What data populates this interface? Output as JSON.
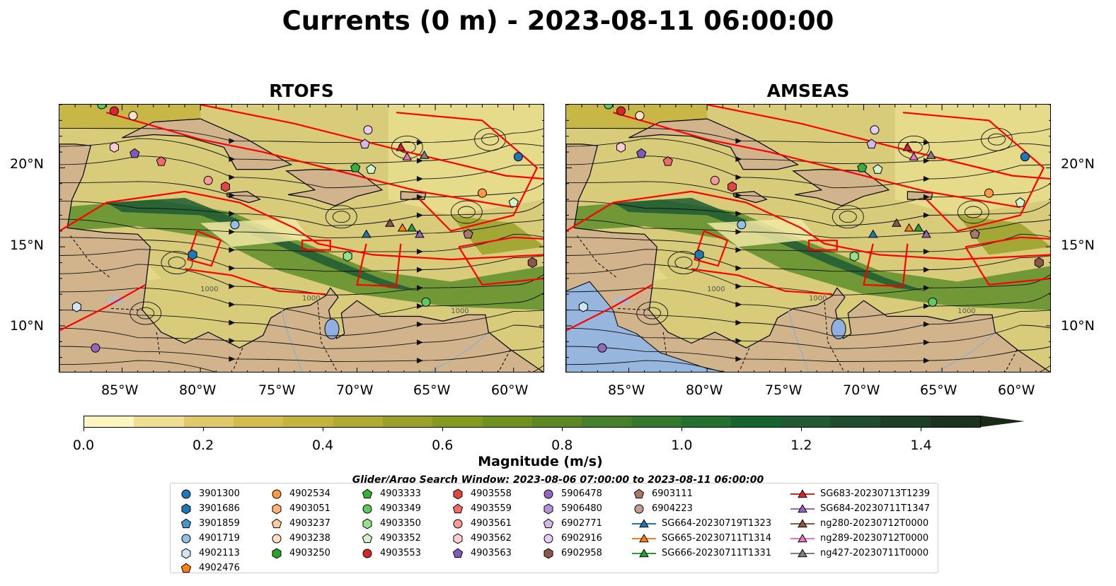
{
  "title": "Currents (0 m) - 2023-08-11 06:00:00",
  "panels": [
    {
      "title": "RTOFS"
    },
    {
      "title": "AMSEAS"
    }
  ],
  "lat_labels": [
    "20°N",
    "15°N",
    "10°N"
  ],
  "lon_labels": [
    "85°W",
    "80°W",
    "75°W",
    "70°W",
    "65°W",
    "60°W"
  ],
  "contour_label": "1000",
  "colorbar": {
    "label": "Magnitude (m/s)",
    "ticks": [
      "0.0",
      "0.2",
      "0.4",
      "0.6",
      "0.8",
      "1.0",
      "1.2",
      "1.4"
    ],
    "colors": [
      "#fcf5c0",
      "#efdf92",
      "#e0c96a",
      "#d3bd4f",
      "#c4b33d",
      "#b0aa32",
      "#9aa02a",
      "#849a1f",
      "#6e9120",
      "#5b8823",
      "#47802a",
      "#357a2c",
      "#226f2e",
      "#15642e",
      "#1f5a34",
      "#1e4c2c",
      "#1d3f26",
      "#1c331f"
    ]
  },
  "legend_title": "Glider/Argo Search Window: 2023-08-06 07:00:00 to 2023-08-11 06:00:00",
  "legend_items": [
    {
      "label": "3901300",
      "shape": "circle",
      "color": "#1f77b4"
    },
    {
      "label": "3901686",
      "shape": "hexagon",
      "color": "#1f77b4"
    },
    {
      "label": "3901859",
      "shape": "pentagon",
      "color": "#4a94c8"
    },
    {
      "label": "4901719",
      "shape": "circle",
      "color": "#93c0e6"
    },
    {
      "label": "4902113",
      "shape": "hexagon",
      "color": "#cfe4f5"
    },
    {
      "label": "4902476",
      "shape": "pentagon",
      "color": "#ff7f0e"
    },
    {
      "label": "4902534",
      "shape": "circle",
      "color": "#ff9a3e"
    },
    {
      "label": "4903051",
      "shape": "hexagon",
      "color": "#ffb377"
    },
    {
      "label": "4903237",
      "shape": "pentagon",
      "color": "#ffcb9a"
    },
    {
      "label": "4903238",
      "shape": "circle",
      "color": "#ffe2c4"
    },
    {
      "label": "4903250",
      "shape": "hexagon",
      "color": "#2ca02c"
    },
    {
      "label": "4903333",
      "shape": "pentagon",
      "color": "#37b037"
    },
    {
      "label": "4903349",
      "shape": "circle",
      "color": "#5fc95f"
    },
    {
      "label": "4903350",
      "shape": "hexagon",
      "color": "#98df8a"
    },
    {
      "label": "4903352",
      "shape": "pentagon",
      "color": "#d4f3c9"
    },
    {
      "label": "4903553",
      "shape": "circle",
      "color": "#d62728"
    },
    {
      "label": "4903558",
      "shape": "hexagon",
      "color": "#e0473f"
    },
    {
      "label": "4903559",
      "shape": "pentagon",
      "color": "#ee6b68"
    },
    {
      "label": "4903561",
      "shape": "circle",
      "color": "#f49c9a"
    },
    {
      "label": "4903562",
      "shape": "hexagon",
      "color": "#fccfcf"
    },
    {
      "label": "4903563",
      "shape": "pentagon",
      "color": "#7e5cbf"
    },
    {
      "label": "5906478",
      "shape": "circle",
      "color": "#9467bd"
    },
    {
      "label": "5906480",
      "shape": "hexagon",
      "color": "#b094d4"
    },
    {
      "label": "6902771",
      "shape": "pentagon",
      "color": "#d2b9ea"
    },
    {
      "label": "6902916",
      "shape": "circle",
      "color": "#e6ccf4"
    },
    {
      "label": "6902958",
      "shape": "hexagon",
      "color": "#8c564b"
    },
    {
      "label": "6903111",
      "shape": "pentagon",
      "color": "#a9786b"
    },
    {
      "label": "6904223",
      "shape": "circle",
      "color": "#c49c94"
    },
    {
      "label": "SG664-20230719T1323",
      "shape": "triangle-line",
      "color": "#1f77b4"
    },
    {
      "label": "SG665-20230711T1314",
      "shape": "triangle-line",
      "color": "#ff7f0e"
    },
    {
      "label": "SG666-20230711T1331",
      "shape": "triangle-line",
      "color": "#2ca02c"
    },
    {
      "label": "SG683-20230713T1239",
      "shape": "triangle-line",
      "color": "#d62728"
    },
    {
      "label": "SG684-20230711T1347",
      "shape": "triangle-line",
      "color": "#9467bd"
    },
    {
      "label": "ng280-20230712T0000",
      "shape": "triangle-line",
      "color": "#8c564b"
    },
    {
      "label": "ng289-20230712T0000",
      "shape": "triangle-line",
      "color": "#e377c2"
    },
    {
      "label": "ng427-20230711T0000",
      "shape": "triangle-line",
      "color": "#7f7f7f"
    }
  ],
  "map_markers": [
    {
      "id": "4903349",
      "lon": -86.3,
      "lat": 24.0
    },
    {
      "id": "4903553",
      "lon": -85.5,
      "lat": 23.6
    },
    {
      "id": "4903238",
      "lon": -84.3,
      "lat": 23.3
    },
    {
      "id": "4903562",
      "lon": -85.5,
      "lat": 21.3
    },
    {
      "id": "4903563",
      "lon": -84.2,
      "lat": 20.9
    },
    {
      "id": "4903559",
      "lon": -82.5,
      "lat": 20.4
    },
    {
      "id": "4903561",
      "lon": -79.5,
      "lat": 19.2
    },
    {
      "id": "4903558",
      "lon": -78.4,
      "lat": 18.8
    },
    {
      "id": "4901719",
      "lon": -77.8,
      "lat": 16.4
    },
    {
      "id": "3901686",
      "lon": -80.5,
      "lat": 14.5
    },
    {
      "id": "4902113",
      "lon": -87.9,
      "lat": 11.2
    },
    {
      "id": "5906478",
      "lon": -86.7,
      "lat": 8.6
    },
    {
      "id": "6902916",
      "lon": -69.3,
      "lat": 22.4
    },
    {
      "id": "6902771",
      "lon": -69.5,
      "lat": 21.5
    },
    {
      "id": "4903333",
      "lon": -70.1,
      "lat": 20.0
    },
    {
      "id": "4903352",
      "lon": -69.1,
      "lat": 19.9
    },
    {
      "id": "4903350",
      "lon": -70.6,
      "lat": 14.4
    },
    {
      "id": "4903349",
      "lon": -65.6,
      "lat": 11.5
    },
    {
      "id": "4902534",
      "lon": -62.0,
      "lat": 18.4
    },
    {
      "id": "4903352",
      "lon": -60.0,
      "lat": 17.8
    },
    {
      "id": "3901300",
      "lon": -59.7,
      "lat": 20.7
    },
    {
      "id": "6903111",
      "lon": -62.9,
      "lat": 15.8
    },
    {
      "id": "6902958",
      "lon": -58.8,
      "lat": 14.0
    },
    {
      "id": "SG664-20230719T1323",
      "lon": -69.4,
      "lat": 15.8
    },
    {
      "id": "ng280-20230712T0000",
      "lon": -67.9,
      "lat": 16.5
    },
    {
      "id": "SG665-20230711T1314",
      "lon": -67.1,
      "lat": 16.2
    },
    {
      "id": "SG666-20230711T1331",
      "lon": -66.5,
      "lat": 16.2
    },
    {
      "id": "SG684-20230711T1347",
      "lon": -66.0,
      "lat": 15.8
    },
    {
      "id": "SG683-20230713T1239",
      "lon": -67.2,
      "lat": 21.3
    },
    {
      "id": "ng289-20230712T0000",
      "lon": -66.8,
      "lat": 20.7
    },
    {
      "id": "ng427-20230711T0000",
      "lon": -65.7,
      "lat": 20.8
    }
  ]
}
